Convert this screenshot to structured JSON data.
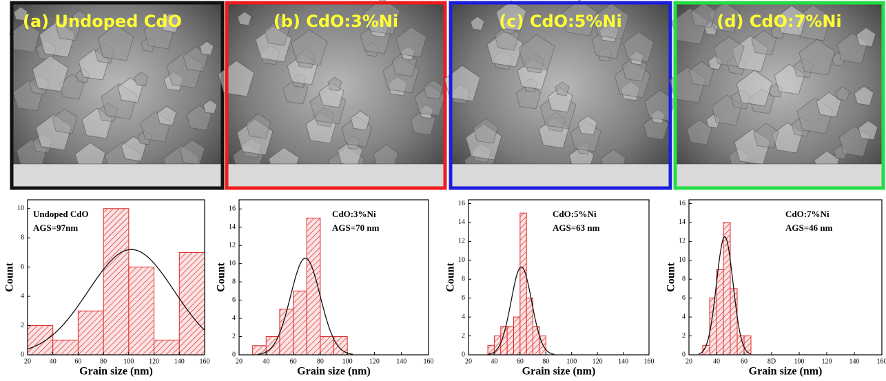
{
  "panels": [
    {
      "label": "(a) Undoped CdO",
      "border": "#111111"
    },
    {
      "label": "(b) CdO:3%Ni",
      "border": "#ee1c1c"
    },
    {
      "label": "(c) CdO:5%Ni",
      "border": "#1c1cdd"
    },
    {
      "label": "(d) CdO:7%Ni",
      "border": "#22dd44"
    }
  ],
  "chart_data": [
    {
      "type": "histogram",
      "xlabel": "Grain size (nm)",
      "ylabel": "Count",
      "annotations": [
        "Undoped CdO",
        "AGS=97nm"
      ],
      "bins": [
        20,
        40,
        60,
        80,
        100,
        120,
        140,
        160
      ],
      "values": [
        2,
        1,
        3,
        10,
        6,
        1,
        7
      ],
      "color": "#e02828",
      "fit": {
        "center": 102,
        "peak": 7.2,
        "sd": 34
      },
      "xlim": [
        20,
        160
      ],
      "xticks": [
        20,
        40,
        60,
        80,
        100,
        120,
        140,
        160
      ],
      "ylim": [
        0,
        10.6
      ],
      "yticks": [
        0,
        2,
        4,
        6,
        8,
        10
      ]
    },
    {
      "type": "histogram",
      "xlabel": "Grain size (nm)",
      "ylabel": "Count",
      "annotations": [
        "CdO:3%Ni",
        "AGS=70 nm"
      ],
      "bins": [
        30,
        40,
        50,
        60,
        70,
        80,
        90,
        100
      ],
      "values": [
        1,
        2,
        5,
        7,
        15,
        2,
        2
      ],
      "color": "#e02828",
      "fit": {
        "center": 69,
        "peak": 10.6,
        "sd": 11
      },
      "xlim": [
        20,
        160
      ],
      "xticks": [
        20,
        40,
        60,
        80,
        100,
        120,
        140,
        160
      ],
      "ylim": [
        0,
        17
      ],
      "yticks": [
        0,
        2,
        4,
        6,
        8,
        10,
        12,
        14,
        16
      ]
    },
    {
      "type": "histogram",
      "xlabel": "Grain size (nm)",
      "ylabel": "Count",
      "annotations": [
        "CdO:5%Ni",
        "AGS=63 nm"
      ],
      "bins": [
        35,
        40,
        45,
        50,
        55,
        60,
        65,
        70,
        75,
        80
      ],
      "values": [
        1,
        2,
        3,
        3,
        4,
        15,
        6,
        3,
        2
      ],
      "color": "#e02828",
      "fit": {
        "center": 61,
        "peak": 9.3,
        "sd": 8
      },
      "xlim": [
        20,
        160
      ],
      "xticks": [
        20,
        40,
        60,
        80,
        100,
        120,
        140,
        160
      ],
      "ylim": [
        0,
        16.4
      ],
      "yticks": [
        0,
        2,
        4,
        6,
        8,
        10,
        12,
        14,
        16
      ]
    },
    {
      "type": "histogram",
      "xlabel": "Grain size (nm)",
      "ylabel": "Count",
      "annotations": [
        "CdO:7%Ni",
        "AGS=46 nm"
      ],
      "bins": [
        30,
        35,
        40,
        45,
        50,
        55,
        60,
        65
      ],
      "values": [
        1,
        6,
        9,
        14,
        7,
        2,
        2
      ],
      "color": "#e02828",
      "fit": {
        "center": 46,
        "peak": 12.5,
        "sd": 6
      },
      "xlim": [
        20,
        160
      ],
      "xticks": [
        20,
        40,
        60,
        {
          "value": 80,
          "label": "8D"
        },
        100,
        120,
        140,
        160
      ],
      "ylim": [
        0,
        16.4
      ],
      "yticks": [
        0,
        2,
        4,
        6,
        8,
        10,
        12,
        14,
        16
      ]
    }
  ]
}
